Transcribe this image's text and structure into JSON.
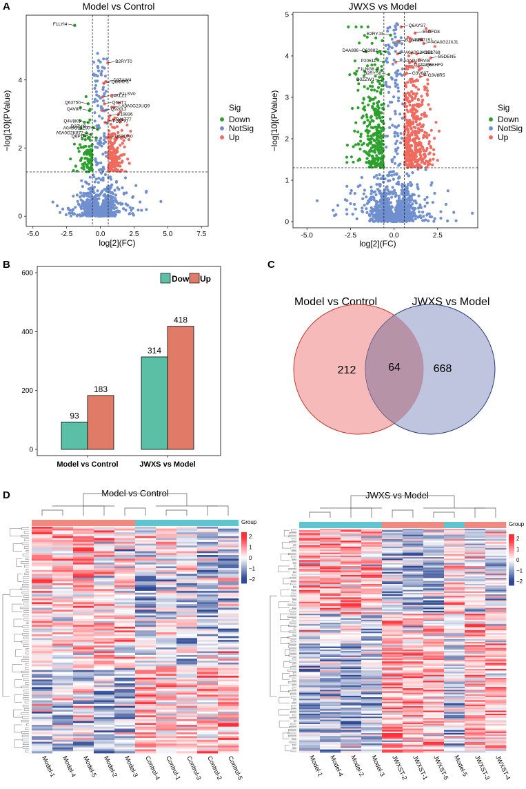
{
  "panel_labels": {
    "a": "A",
    "b": "B",
    "c": "C",
    "d": "D"
  },
  "colors": {
    "down": "#2ca02c",
    "notsig": "#6f8fcf",
    "up": "#f06a5f",
    "bar_down": "#5bbfa6",
    "bar_up": "#e07b68",
    "venn_left": "#f3a3a3",
    "venn_right": "#aab2d4",
    "hm_high": "#e8303a",
    "hm_low": "#2e4a94",
    "group_model": "#f08a80",
    "group_other": "#5ec5d1"
  },
  "chart_data": [
    {
      "id": "volcano1",
      "type": "scatter",
      "title": "Model vs Control",
      "xlabel": "log[2](FC)",
      "ylabel": "−log[10](PValue)",
      "xlim": [
        -5.5,
        8
      ],
      "ylim": [
        -0.3,
        5.9
      ],
      "xticks": [
        "-5.0",
        "-2.5",
        "0.0",
        "2.5",
        "5.0",
        "7.5"
      ],
      "xtick_values": [
        -5,
        -2.5,
        0,
        2.5,
        5,
        7.5
      ],
      "yticks": [
        "0",
        "2",
        "4"
      ],
      "ytick_values": [
        0,
        2,
        4
      ],
      "fc_threshold": 0.585,
      "p_threshold": 1.3,
      "legend_title": "Sig",
      "legend": [
        "Down",
        "NotSig",
        "Up"
      ],
      "labeled_points": [
        {
          "name": "F1LYI4",
          "x": -1.9,
          "y": 5.6
        },
        {
          "name": "B2RYT0",
          "x": 0.55,
          "y": 4.5
        },
        {
          "name": "Q6KRF5",
          "x": 0.25,
          "y": 3.9
        },
        {
          "name": "D3ZAW4",
          "x": 0.4,
          "y": 3.95
        },
        {
          "name": "Q4KLZ1",
          "x": 0.15,
          "y": 3.5
        },
        {
          "name": "F1LSV0",
          "x": 0.85,
          "y": 3.55
        },
        {
          "name": "Q63750",
          "x": -0.9,
          "y": 3.3
        },
        {
          "name": "Q6HT1",
          "x": 0.3,
          "y": 3.3
        },
        {
          "name": "A0A0G2JUQ9",
          "x": 1.0,
          "y": 3.2
        },
        {
          "name": "Q4V8I7",
          "x": -0.8,
          "y": 3.1
        },
        {
          "name": "Q920L2",
          "x": 0.2,
          "y": 3.1
        },
        {
          "name": "P19836",
          "x": 0.7,
          "y": 2.95
        },
        {
          "name": "Q4V8K5",
          "x": -0.9,
          "y": 2.75
        },
        {
          "name": "P26770",
          "x": 0.35,
          "y": 2.75
        },
        {
          "name": "P41777",
          "x": 0.6,
          "y": 2.8
        },
        {
          "name": "D3ZVI9",
          "x": -0.5,
          "y": 2.6
        },
        {
          "name": "A0A0G2JZ90",
          "x": -0.2,
          "y": 2.55
        },
        {
          "name": "A0A0G2K872",
          "x": -0.7,
          "y": 2.4
        },
        {
          "name": "Q6P1H5",
          "x": -0.3,
          "y": 2.3
        },
        {
          "name": "Q5PQN0",
          "x": 0.5,
          "y": 2.3
        }
      ]
    },
    {
      "id": "volcano2",
      "type": "scatter",
      "title": "JWXS vs Model",
      "xlabel": "log[2](FC)",
      "ylabel": "−log[10](PValue)",
      "xlim": [
        -5.8,
        4.8
      ],
      "ylim": [
        -0.15,
        5.05
      ],
      "xticks": [
        "-5.0",
        "-2.5",
        "0.0",
        "2.5"
      ],
      "xtick_values": [
        -5,
        -2.5,
        0,
        2.5
      ],
      "yticks": [
        "0",
        "1",
        "2",
        "3",
        "4",
        "5"
      ],
      "ytick_values": [
        0,
        1,
        2,
        3,
        4,
        5
      ],
      "fc_threshold": 0.585,
      "p_threshold": 1.3,
      "legend_title": "Sig",
      "legend": [
        "Down",
        "NotSig",
        "Up"
      ],
      "labeled_points": [
        {
          "name": "Q6AYS7",
          "x": 0.4,
          "y": 4.7
        },
        {
          "name": "B2RYJ3",
          "x": -0.2,
          "y": 4.5
        },
        {
          "name": "B5DFD8",
          "x": 1.2,
          "y": 4.55
        },
        {
          "name": "B1WBS4",
          "x": 0.2,
          "y": 4.35
        },
        {
          "name": "P07151",
          "x": 0.9,
          "y": 4.35
        },
        {
          "name": "A0A0G2JXJ1",
          "x": 1.7,
          "y": 4.3
        },
        {
          "name": "D4A896",
          "x": -1.6,
          "y": 4.1
        },
        {
          "name": "Q63882",
          "x": -0.5,
          "y": 4.1
        },
        {
          "name": "A0A0G2K1E1",
          "x": 0.2,
          "y": 4.05
        },
        {
          "name": "O08769",
          "x": 1.3,
          "y": 4.05
        },
        {
          "name": "P20611",
          "x": -0.6,
          "y": 3.85
        },
        {
          "name": "A0A0U1RVI8",
          "x": 0.1,
          "y": 3.85
        },
        {
          "name": "B5DEN5",
          "x": 2.1,
          "y": 3.95
        },
        {
          "name": "Q3ZGE6",
          "x": 0.7,
          "y": 3.75
        },
        {
          "name": "Q66HF9",
          "x": 1.4,
          "y": 3.75
        },
        {
          "name": "F1LNG8",
          "x": -0.7,
          "y": 3.65
        },
        {
          "name": "B2RYS8",
          "x": -0.3,
          "y": 3.55
        },
        {
          "name": "G3V637",
          "x": 0.6,
          "y": 3.55
        },
        {
          "name": "G3V8R5",
          "x": 1.5,
          "y": 3.5
        },
        {
          "name": "D3ZZW1",
          "x": -0.7,
          "y": 3.4
        }
      ]
    },
    {
      "id": "bars",
      "type": "bar",
      "categories": [
        "Model vs Control",
        "JWXS vs Model"
      ],
      "series": [
        {
          "name": "Down",
          "values": [
            93,
            314
          ]
        },
        {
          "name": "Up",
          "values": [
            183,
            418
          ]
        }
      ],
      "value_labels": [
        [
          "93",
          "183"
        ],
        [
          "314",
          "418"
        ]
      ],
      "ylim": [
        0,
        600
      ],
      "yticks": [
        "0",
        "200",
        "400",
        "600"
      ],
      "ytick_values": [
        0,
        200,
        400,
        600
      ],
      "legend_placement": "top-right"
    },
    {
      "id": "venn",
      "type": "venn",
      "sets": [
        {
          "name": "Model vs Control",
          "only": "212"
        },
        {
          "name": "JWXS vs Model",
          "only": "668"
        }
      ],
      "intersection": "64"
    },
    {
      "id": "heatmap1",
      "type": "heatmap",
      "title": "Model vs Control",
      "columns": [
        "Model-1",
        "Model-4",
        "Model-5",
        "Model-2",
        "Model-3",
        "Control-4",
        "Control-1",
        "Control-3",
        "Control-2",
        "Control-5"
      ],
      "groups": [
        "model",
        "model",
        "model",
        "model",
        "model",
        "other",
        "other",
        "other",
        "other",
        "other"
      ],
      "legend_title": "Group",
      "scale_ticks": [
        "2",
        "1",
        "0",
        "−1",
        "−2"
      ],
      "scale_values": [
        2,
        1,
        0,
        -1,
        -2
      ]
    },
    {
      "id": "heatmap2",
      "type": "heatmap",
      "title": "JWXS vs Model",
      "columns": [
        "Model-1",
        "Model-4",
        "Model-2",
        "Model-3",
        "JWXST-2",
        "JWXST-1",
        "JWXST-5",
        "Model-5",
        "JWXST-3",
        "JWXST-4"
      ],
      "groups": [
        "other",
        "other",
        "other",
        "other",
        "model",
        "model",
        "model",
        "other",
        "model",
        "model"
      ],
      "legend_title": "Group",
      "scale_ticks": [
        "2",
        "1",
        "0",
        "−1",
        "−2"
      ],
      "scale_values": [
        2,
        1,
        0,
        -1,
        -2
      ]
    }
  ]
}
